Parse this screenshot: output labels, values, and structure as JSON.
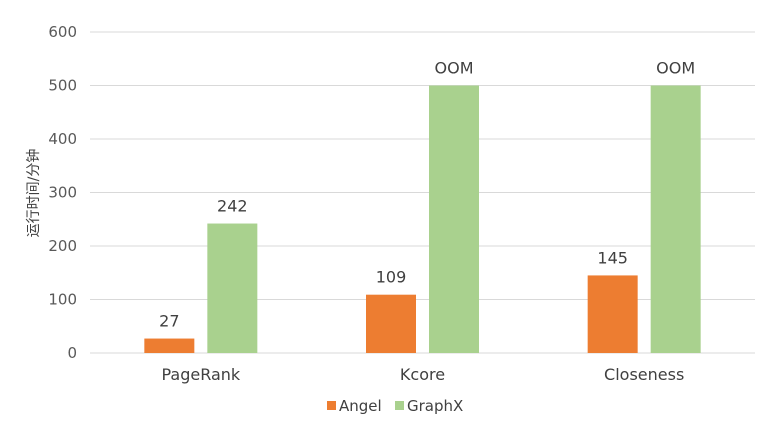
{
  "chart_data": {
    "type": "bar",
    "title": "",
    "xlabel": "",
    "ylabel": "运行时间/分钟",
    "ylim": [
      0,
      600
    ],
    "yticks": [
      0,
      100,
      200,
      300,
      400,
      500,
      600
    ],
    "grid": true,
    "legend_position": "bottom",
    "categories": [
      "PageRank",
      "Kcore",
      "Closeness"
    ],
    "series": [
      {
        "name": "Angel",
        "color": "#ED7D31",
        "values": [
          27,
          109,
          145
        ],
        "labels": [
          "27",
          "109",
          "145"
        ]
      },
      {
        "name": "GraphX",
        "color": "#A9D18E",
        "values": [
          242,
          500,
          500
        ],
        "labels": [
          "242",
          "OOM",
          "OOM"
        ]
      }
    ]
  }
}
